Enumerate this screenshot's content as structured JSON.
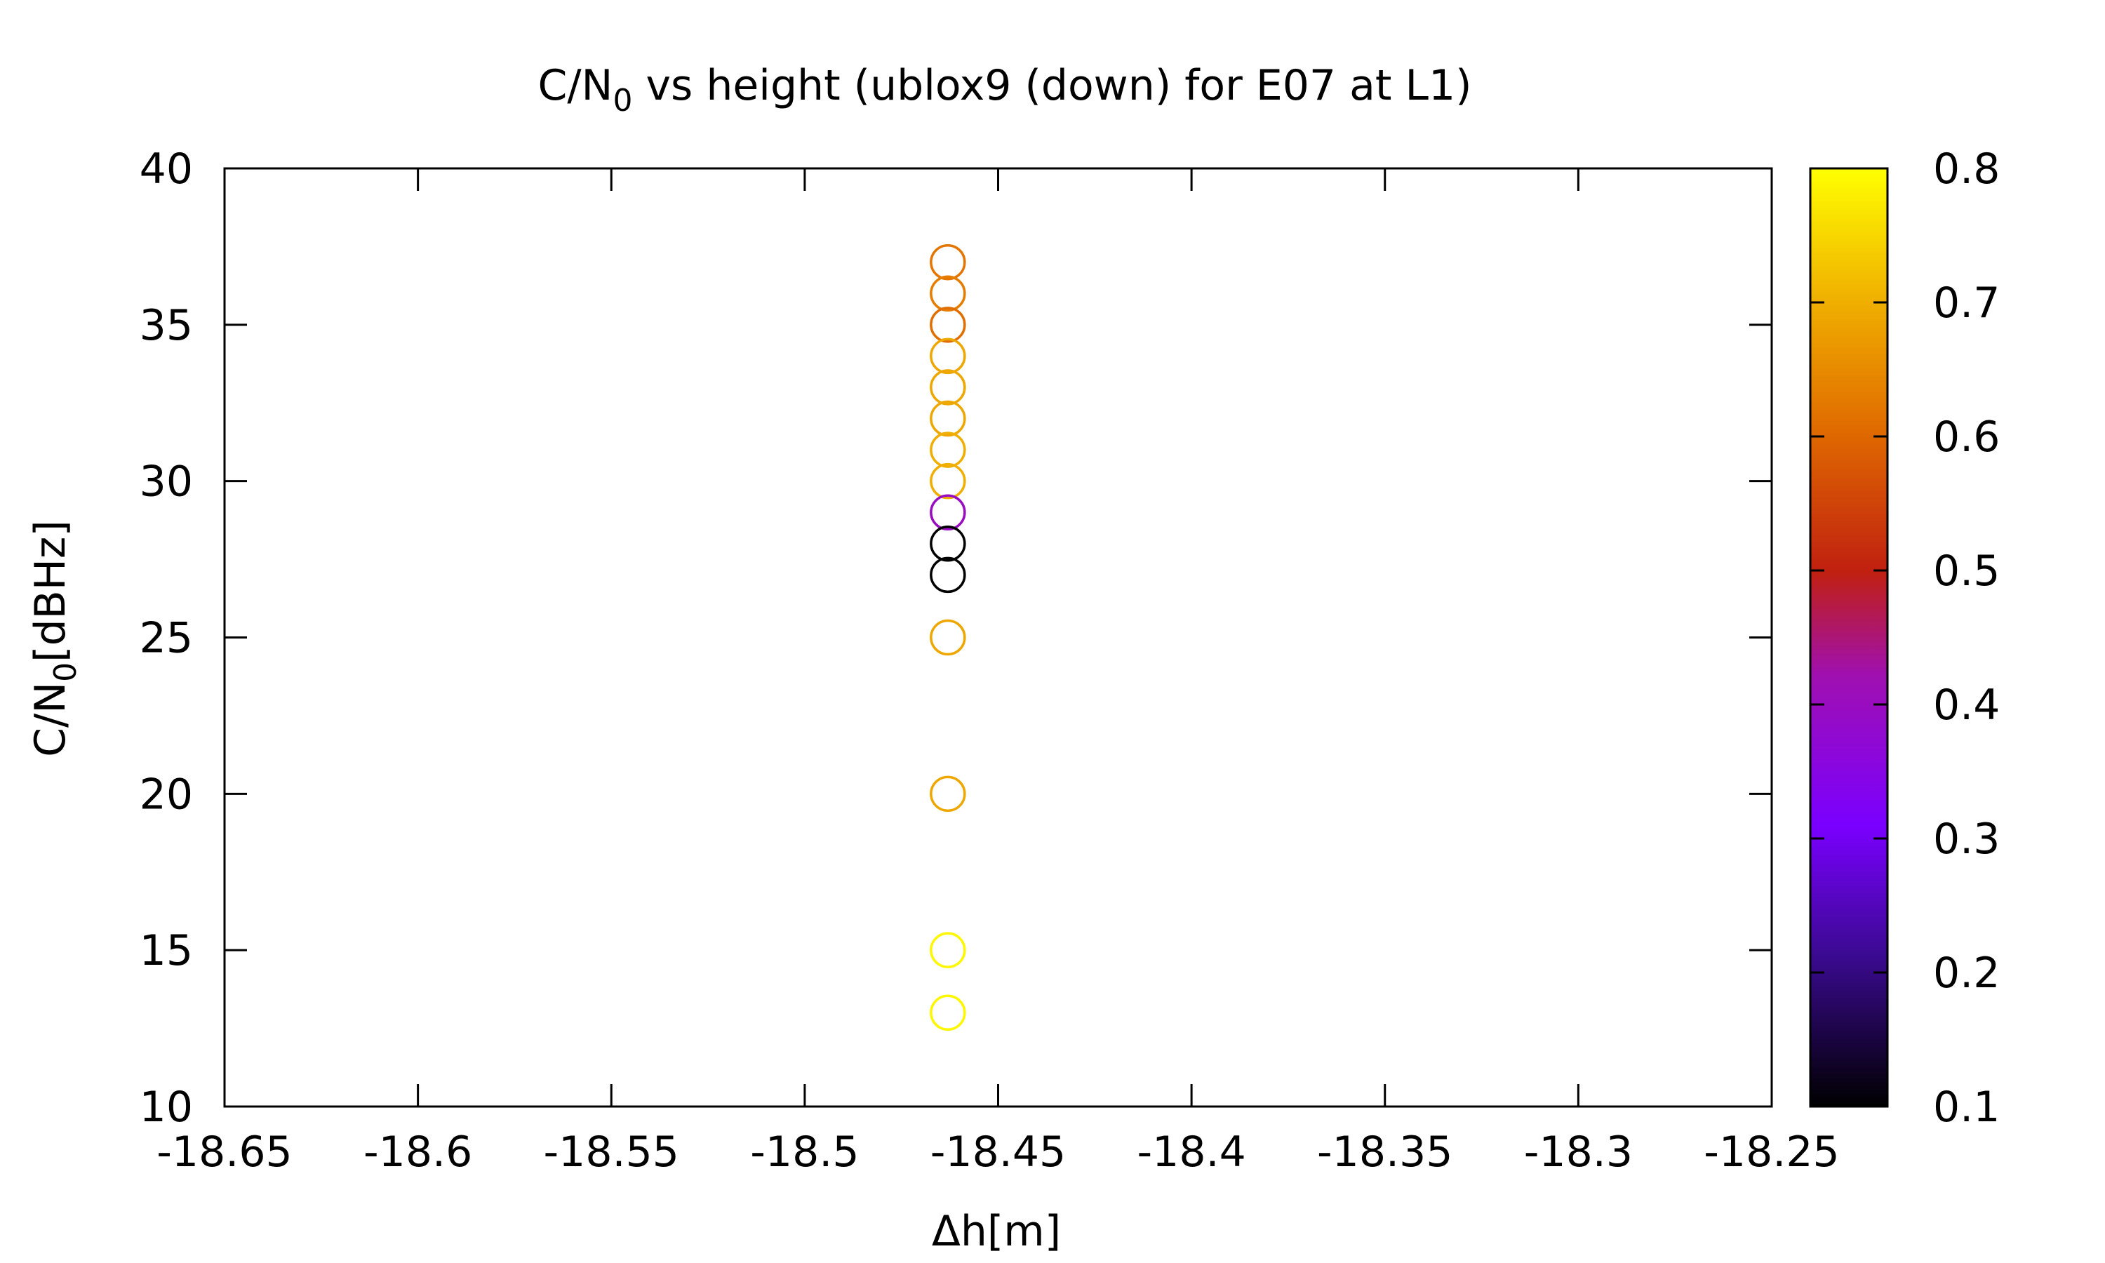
{
  "chart_data": {
    "type": "scatter",
    "title_main": "C/N",
    "title_sub": "0",
    "title_rest": " vs height (ublox9 (down) for E07 at L1)",
    "xlabel": "Δh[m]",
    "ylabel_main": "C/N",
    "ylabel_sub": "0",
    "ylabel_rest": "[dBHz]",
    "xlim": [
      -18.65,
      -18.25
    ],
    "ylim": [
      10,
      40
    ],
    "x_ticks": [
      -18.65,
      -18.6,
      -18.55,
      -18.5,
      -18.45,
      -18.4,
      -18.35,
      -18.3,
      -18.25
    ],
    "x_tick_labels": [
      "-18.65",
      "-18.6",
      "-18.55",
      "-18.5",
      "-18.45",
      "-18.4",
      "-18.35",
      "-18.3",
      "-18.25"
    ],
    "y_ticks": [
      10,
      15,
      20,
      25,
      30,
      35,
      40
    ],
    "y_tick_labels": [
      "10",
      "15",
      "20",
      "25",
      "30",
      "35",
      "40"
    ],
    "grid": false,
    "marker": "open-circle",
    "points": [
      {
        "x": -18.463,
        "y": 37,
        "c": 0.62
      },
      {
        "x": -18.463,
        "y": 36,
        "c": 0.63
      },
      {
        "x": -18.463,
        "y": 35,
        "c": 0.61
      },
      {
        "x": -18.463,
        "y": 34,
        "c": 0.69
      },
      {
        "x": -18.463,
        "y": 33,
        "c": 0.69
      },
      {
        "x": -18.463,
        "y": 32,
        "c": 0.69
      },
      {
        "x": -18.463,
        "y": 31,
        "c": 0.7
      },
      {
        "x": -18.463,
        "y": 30,
        "c": 0.7
      },
      {
        "x": -18.463,
        "y": 29,
        "c": 0.4
      },
      {
        "x": -18.463,
        "y": 28,
        "c": 0.1
      },
      {
        "x": -18.463,
        "y": 27,
        "c": 0.1
      },
      {
        "x": -18.463,
        "y": 25,
        "c": 0.69
      },
      {
        "x": -18.463,
        "y": 20,
        "c": 0.69
      },
      {
        "x": -18.463,
        "y": 15,
        "c": 0.79
      },
      {
        "x": -18.463,
        "y": 13,
        "c": 0.79
      }
    ],
    "colorbar": {
      "palette": "black-blue-violet-red-orange-yellow",
      "range": [
        0.1,
        0.8
      ],
      "ticks": [
        0.1,
        0.2,
        0.3,
        0.4,
        0.5,
        0.6,
        0.7,
        0.8
      ],
      "tick_labels": [
        "0.1",
        "0.2",
        "0.3",
        "0.4",
        "0.5",
        "0.6",
        "0.7",
        "0.8"
      ]
    }
  }
}
